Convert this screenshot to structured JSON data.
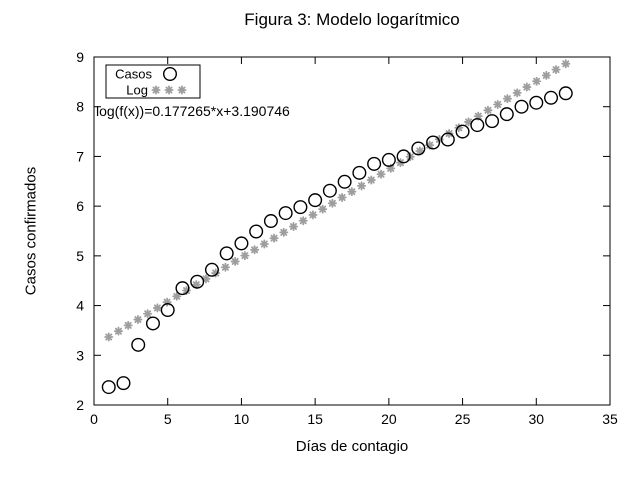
{
  "page": {
    "background": "#ffffff",
    "foreground": "#000000"
  },
  "chart_data": {
    "type": "scatter",
    "title": "Figura 3: Modelo logarítmico",
    "xlabel": "Días de contagio",
    "ylabel": "Casos confirmados",
    "xlim": [
      0,
      35
    ],
    "ylim": [
      2,
      9
    ],
    "x_ticks": [
      0,
      5,
      10,
      15,
      20,
      25,
      30,
      35
    ],
    "y_ticks": [
      2,
      3,
      4,
      5,
      6,
      7,
      8,
      9
    ],
    "grid": false,
    "legend_position": "top-left",
    "annotation": "log(f(x))=0.177265*x+3.190746",
    "series": [
      {
        "name": "Casos",
        "marker": "open-circle",
        "color": "#000000",
        "x": [
          1,
          2,
          3,
          4,
          5,
          6,
          7,
          8,
          9,
          10,
          11,
          12,
          13,
          14,
          15,
          16,
          17,
          18,
          19,
          20,
          21,
          22,
          23,
          24,
          25,
          26,
          27,
          28,
          29,
          30,
          31,
          32
        ],
        "y": [
          2.36,
          2.44,
          3.21,
          3.64,
          3.91,
          4.35,
          4.48,
          4.72,
          5.05,
          5.25,
          5.49,
          5.7,
          5.86,
          5.98,
          6.12,
          6.31,
          6.49,
          6.67,
          6.85,
          6.93,
          7.0,
          7.16,
          7.28,
          7.34,
          7.5,
          7.63,
          7.71,
          7.85,
          8.0,
          8.08,
          8.18,
          8.27
        ]
      },
      {
        "name": "Log",
        "marker": "asterisk",
        "color": "#9e9e9e",
        "fit": {
          "slope": 0.177265,
          "intercept": 3.190746,
          "x_start": 1,
          "x_end": 32,
          "samples": 48
        }
      }
    ]
  }
}
